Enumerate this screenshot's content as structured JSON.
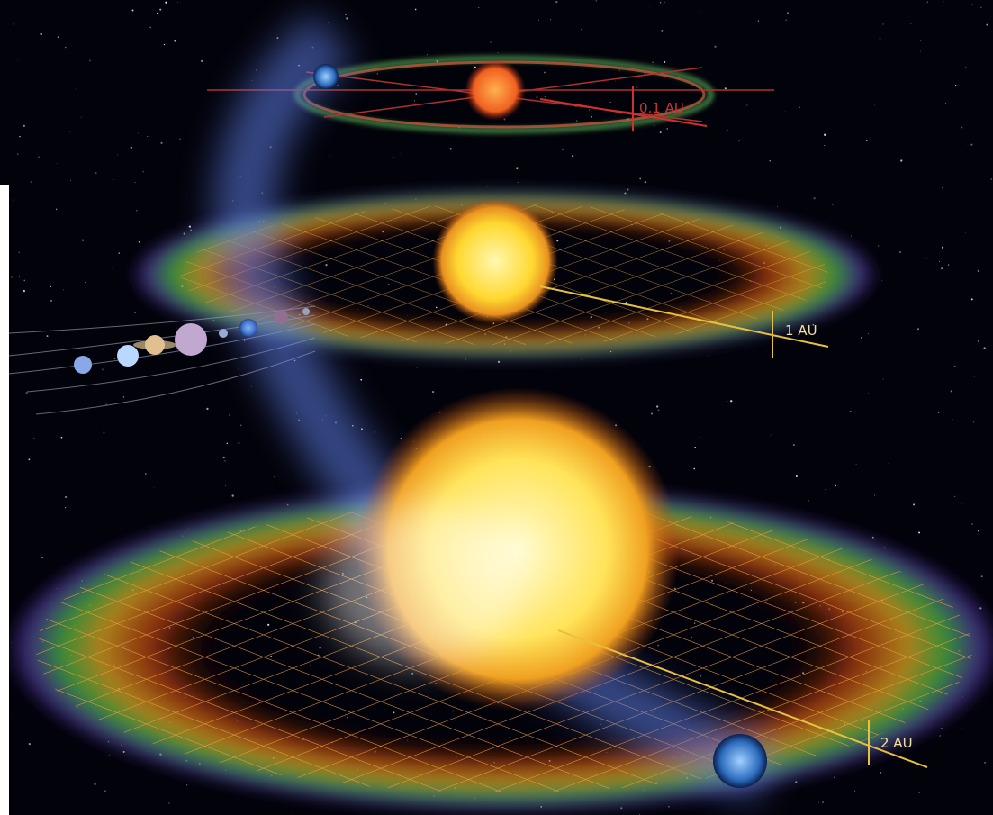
{
  "labels": {
    "inner": "0.1 AU",
    "middle": "1 AU",
    "outer": "2 AU"
  }
}
